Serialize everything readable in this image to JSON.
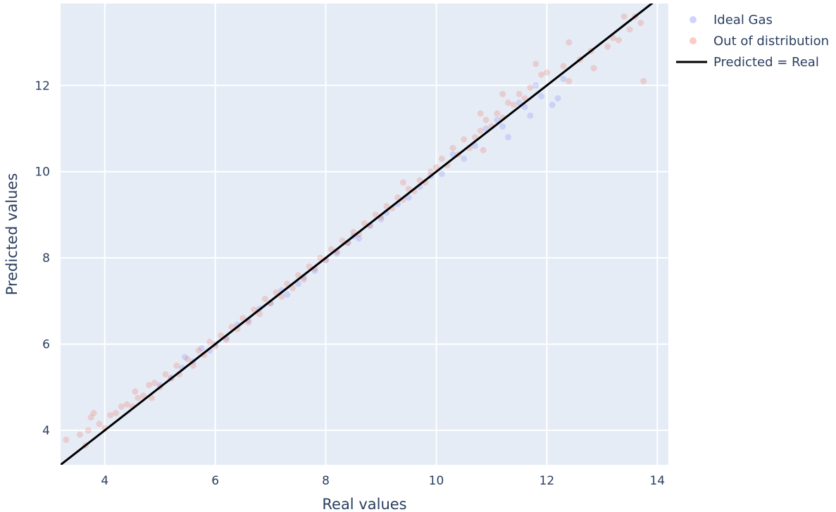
{
  "chart_data": {
    "type": "scatter",
    "xlabel": "Real values",
    "ylabel": "Predicted values",
    "xlim": [
      3.2,
      14.2
    ],
    "ylim": [
      3.2,
      13.9
    ],
    "x_ticks": [
      4,
      6,
      8,
      10,
      12,
      14
    ],
    "y_ticks": [
      4,
      6,
      8,
      10,
      12
    ],
    "grid": true,
    "legend_position": "top-right outside",
    "plot_background": "#e5ecf6",
    "series": [
      {
        "name": "Ideal Gas",
        "mode": "markers",
        "color": "#636efa",
        "opacity": 0.2,
        "points": [
          [
            5.0,
            5.05
          ],
          [
            5.2,
            5.22
          ],
          [
            5.4,
            5.45
          ],
          [
            5.45,
            5.7
          ],
          [
            5.6,
            5.6
          ],
          [
            5.75,
            5.9
          ],
          [
            5.9,
            5.85
          ],
          [
            6.0,
            6.0
          ],
          [
            6.2,
            6.15
          ],
          [
            6.4,
            6.45
          ],
          [
            6.6,
            6.55
          ],
          [
            6.8,
            6.82
          ],
          [
            7.0,
            6.95
          ],
          [
            7.2,
            7.25
          ],
          [
            7.3,
            7.15
          ],
          [
            7.5,
            7.4
          ],
          [
            7.6,
            7.55
          ],
          [
            7.8,
            7.7
          ],
          [
            8.0,
            7.95
          ],
          [
            8.2,
            8.1
          ],
          [
            8.4,
            8.35
          ],
          [
            8.5,
            8.5
          ],
          [
            8.6,
            8.45
          ],
          [
            8.8,
            8.75
          ],
          [
            9.0,
            8.9
          ],
          [
            9.1,
            9.05
          ],
          [
            9.3,
            9.25
          ],
          [
            9.5,
            9.4
          ],
          [
            9.7,
            9.65
          ],
          [
            9.9,
            9.9
          ],
          [
            10.1,
            9.95
          ],
          [
            10.3,
            10.4
          ],
          [
            10.5,
            10.3
          ],
          [
            10.7,
            10.6
          ],
          [
            10.9,
            11.0
          ],
          [
            11.1,
            11.2
          ],
          [
            11.2,
            11.05
          ],
          [
            11.3,
            10.8
          ],
          [
            11.5,
            11.6
          ],
          [
            11.6,
            11.5
          ],
          [
            11.8,
            12.0
          ],
          [
            11.9,
            11.75
          ],
          [
            12.1,
            11.55
          ],
          [
            12.2,
            11.7
          ],
          [
            12.3,
            12.15
          ],
          [
            11.7,
            11.3
          ]
        ]
      },
      {
        "name": "Out of distribution",
        "mode": "markers",
        "color": "#ef553b",
        "opacity": 0.2,
        "points": [
          [
            3.3,
            3.78
          ],
          [
            3.55,
            3.9
          ],
          [
            3.65,
            3.65
          ],
          [
            3.7,
            4.0
          ],
          [
            3.75,
            4.3
          ],
          [
            3.8,
            4.4
          ],
          [
            3.9,
            4.15
          ],
          [
            4.0,
            4.05
          ],
          [
            4.1,
            4.35
          ],
          [
            4.2,
            4.4
          ],
          [
            4.3,
            4.55
          ],
          [
            4.4,
            4.6
          ],
          [
            4.5,
            4.55
          ],
          [
            4.55,
            4.9
          ],
          [
            4.6,
            4.75
          ],
          [
            4.7,
            4.8
          ],
          [
            4.8,
            5.05
          ],
          [
            4.85,
            4.75
          ],
          [
            4.9,
            5.1
          ],
          [
            5.0,
            5.0
          ],
          [
            5.1,
            5.3
          ],
          [
            5.2,
            5.2
          ],
          [
            5.3,
            5.5
          ],
          [
            5.35,
            5.3
          ],
          [
            5.5,
            5.65
          ],
          [
            5.6,
            5.5
          ],
          [
            5.7,
            5.85
          ],
          [
            5.8,
            5.75
          ],
          [
            5.9,
            6.05
          ],
          [
            6.0,
            5.95
          ],
          [
            6.1,
            6.2
          ],
          [
            6.2,
            6.1
          ],
          [
            6.3,
            6.4
          ],
          [
            6.4,
            6.35
          ],
          [
            6.5,
            6.6
          ],
          [
            6.6,
            6.5
          ],
          [
            6.7,
            6.8
          ],
          [
            6.8,
            6.7
          ],
          [
            6.9,
            7.05
          ],
          [
            7.0,
            6.95
          ],
          [
            7.1,
            7.2
          ],
          [
            7.2,
            7.1
          ],
          [
            7.3,
            7.4
          ],
          [
            7.4,
            7.3
          ],
          [
            7.5,
            7.6
          ],
          [
            7.6,
            7.5
          ],
          [
            7.7,
            7.8
          ],
          [
            7.8,
            7.75
          ],
          [
            7.9,
            8.0
          ],
          [
            8.0,
            7.95
          ],
          [
            8.1,
            8.2
          ],
          [
            8.2,
            8.15
          ],
          [
            8.3,
            8.4
          ],
          [
            8.4,
            8.35
          ],
          [
            8.5,
            8.6
          ],
          [
            8.6,
            8.55
          ],
          [
            8.7,
            8.8
          ],
          [
            8.8,
            8.75
          ],
          [
            8.9,
            9.0
          ],
          [
            9.0,
            8.95
          ],
          [
            9.1,
            9.2
          ],
          [
            9.2,
            9.15
          ],
          [
            9.3,
            9.4
          ],
          [
            9.4,
            9.35
          ],
          [
            9.5,
            9.6
          ],
          [
            9.6,
            9.55
          ],
          [
            9.7,
            9.8
          ],
          [
            9.8,
            9.75
          ],
          [
            9.9,
            10.0
          ],
          [
            10.0,
            10.1
          ],
          [
            10.1,
            10.3
          ],
          [
            10.2,
            10.15
          ],
          [
            10.3,
            10.55
          ],
          [
            10.4,
            10.4
          ],
          [
            10.5,
            10.75
          ],
          [
            10.6,
            10.55
          ],
          [
            10.7,
            10.8
          ],
          [
            10.8,
            10.95
          ],
          [
            10.9,
            11.2
          ],
          [
            11.0,
            11.05
          ],
          [
            11.1,
            11.35
          ],
          [
            11.2,
            11.25
          ],
          [
            11.3,
            11.6
          ],
          [
            11.4,
            11.55
          ],
          [
            11.5,
            11.8
          ],
          [
            11.6,
            11.7
          ],
          [
            11.7,
            11.95
          ],
          [
            11.8,
            12.5
          ],
          [
            11.9,
            12.25
          ],
          [
            12.0,
            12.3
          ],
          [
            12.3,
            12.45
          ],
          [
            12.4,
            12.1
          ],
          [
            12.4,
            13.0
          ],
          [
            12.6,
            12.6
          ],
          [
            12.8,
            12.8
          ],
          [
            12.85,
            12.4
          ],
          [
            13.1,
            12.9
          ],
          [
            13.2,
            13.1
          ],
          [
            13.3,
            13.05
          ],
          [
            13.4,
            13.6
          ],
          [
            13.5,
            13.3
          ],
          [
            13.6,
            13.6
          ],
          [
            13.7,
            13.45
          ],
          [
            13.75,
            12.1
          ],
          [
            10.8,
            11.35
          ],
          [
            11.2,
            11.8
          ],
          [
            10.85,
            10.5
          ],
          [
            9.4,
            9.75
          ]
        ]
      },
      {
        "name": "Predicted = Real",
        "mode": "lines",
        "color": "#000000",
        "x": [
          3.2,
          14.2
        ],
        "y": [
          3.2,
          14.2
        ]
      }
    ]
  }
}
